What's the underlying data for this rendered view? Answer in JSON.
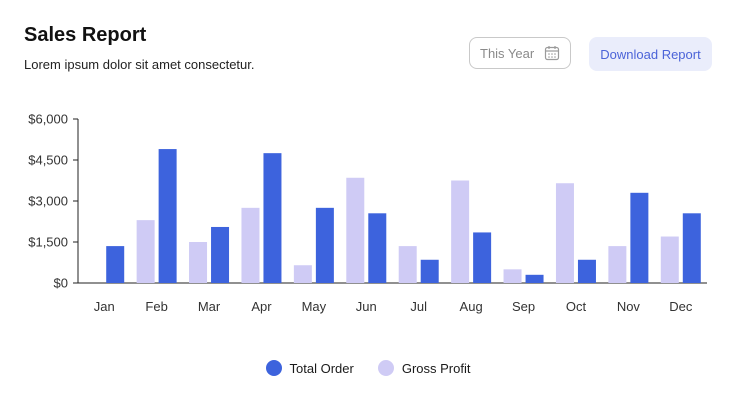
{
  "header": {
    "title": "Sales Report",
    "subtitle": "Lorem ipsum dolor sit amet consectetur."
  },
  "controls": {
    "period_value": "This Year",
    "period_icon": "calendar-icon",
    "download_label": "Download Report"
  },
  "colors": {
    "total_order": "#3d63dd",
    "gross_profit": "#cfcbf5",
    "button_bg": "#eaedfb",
    "button_text": "#4b63d8"
  },
  "chart_data": {
    "type": "bar",
    "categories": [
      "Jan",
      "Feb",
      "Mar",
      "Apr",
      "May",
      "Jun",
      "Jul",
      "Aug",
      "Sep",
      "Oct",
      "Nov",
      "Dec"
    ],
    "series": [
      {
        "name": "Gross Profit",
        "color": "#cfcbf5",
        "values": [
          0,
          2300,
          1500,
          2750,
          650,
          3850,
          1350,
          3750,
          500,
          3650,
          1350,
          1700
        ]
      },
      {
        "name": "Total Order",
        "color": "#3d63dd",
        "values": [
          1350,
          4900,
          2050,
          4750,
          2750,
          2550,
          850,
          1850,
          300,
          850,
          3300,
          2550
        ]
      }
    ],
    "ylim": [
      0,
      6000
    ],
    "yticks": [
      0,
      1500,
      3000,
      4500,
      6000
    ],
    "ytick_labels": [
      "$0",
      "$1,500",
      "$3,000",
      "$4,500",
      "$6,000"
    ],
    "grid": false,
    "legend_position": "bottom-center"
  }
}
